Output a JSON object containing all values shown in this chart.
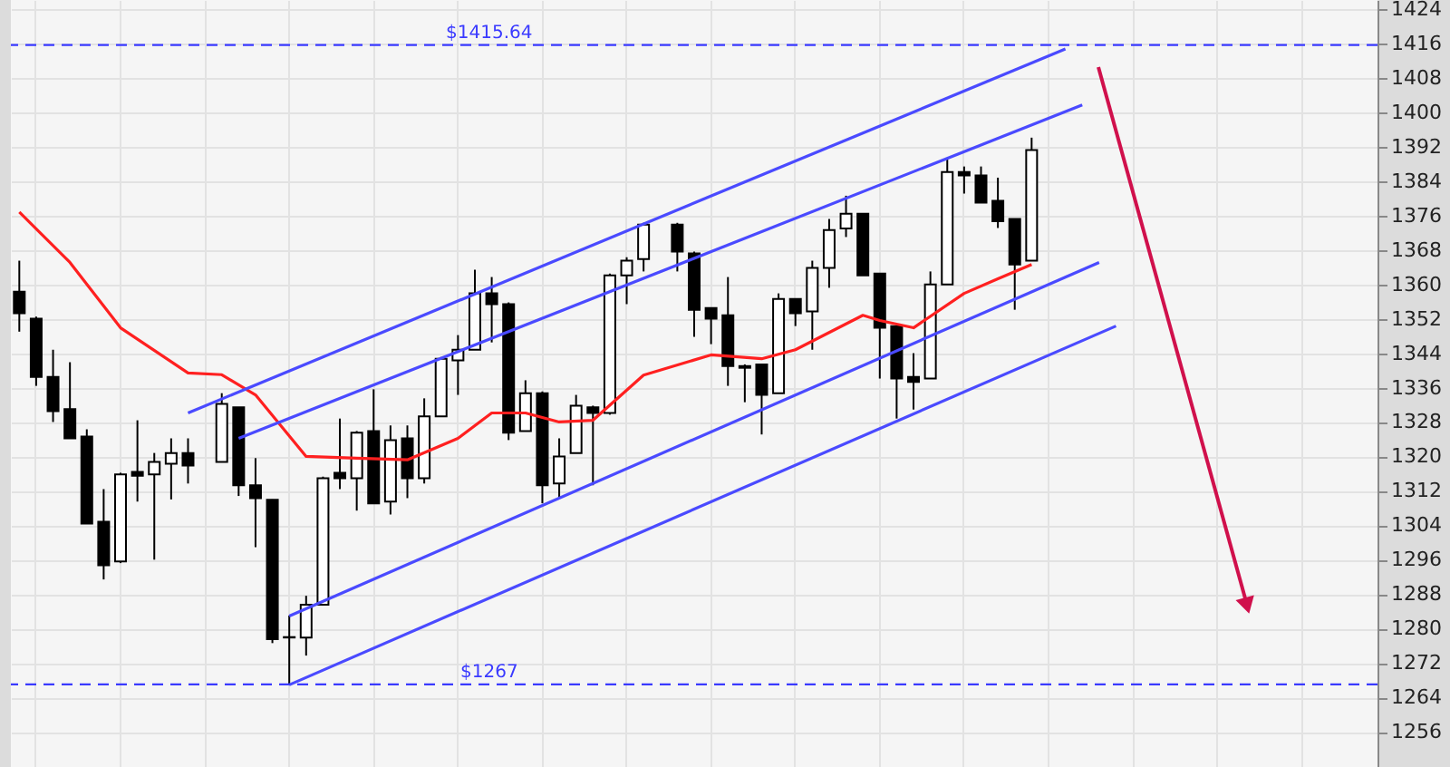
{
  "chart_data": {
    "type": "candlestick",
    "categories": [
      null,
      null,
      null,
      null,
      null,
      null,
      null,
      null,
      null,
      null,
      null,
      null,
      null,
      null,
      null,
      null,
      null,
      null,
      null,
      null,
      null,
      null,
      null,
      null,
      null,
      null,
      null,
      null,
      null,
      null,
      null,
      null,
      null,
      null,
      null,
      null,
      null,
      null,
      null,
      null,
      null,
      null,
      null,
      null,
      null,
      null,
      null,
      null,
      null,
      null,
      null,
      null,
      null,
      null,
      null,
      null,
      null,
      null,
      null,
      null,
      null,
      null,
      null,
      null,
      null,
      null,
      null,
      null,
      null,
      null,
      null,
      null,
      null,
      null,
      null,
      null,
      null,
      null,
      null,
      null,
      null
    ],
    "ohlc": [
      [
        1358.3,
        1365.5,
        1349,
        1353.3
      ],
      [
        1352,
        1352.5,
        1336.4,
        1338.5
      ],
      [
        1338.5,
        1344.8,
        1328,
        1330.5
      ],
      [
        1331,
        1341.9,
        1324.2,
        1324.2
      ],
      [
        1324.6,
        1326.3,
        1304.4,
        1304.4
      ],
      [
        1304.8,
        1312.4,
        1291.4,
        1294.7
      ],
      [
        1295.6,
        1316.2,
        1295.2,
        1315.8
      ],
      [
        1316.4,
        1328.4,
        1309.5,
        1315.5
      ],
      [
        1315.8,
        1320.8,
        1296,
        1318.7
      ],
      [
        1318.3,
        1324.2,
        1310,
        1320.8
      ],
      [
        1320.8,
        1324.2,
        1313.7,
        1317.9
      ],
      null,
      [
        1318.7,
        1334.7,
        1318.7,
        1332.2
      ],
      [
        1331.4,
        1331.4,
        1310.8,
        1313.3
      ],
      [
        1313.3,
        1319.6,
        1298.9,
        1310.3
      ],
      [
        1309.9,
        1310,
        1276.6,
        1277.5
      ],
      [
        1278,
        1283,
        1267,
        1277.9
      ],
      [
        1277.9,
        1287.6,
        1273.7,
        1285.5
      ],
      [
        1285.5,
        1315.3,
        1285.3,
        1314.9
      ],
      [
        1316.2,
        1328.8,
        1312.4,
        1314.9
      ],
      [
        1314.9,
        1325.9,
        1307.4,
        1325.5
      ],
      [
        1325.9,
        1335.6,
        1309.1,
        1309.1
      ],
      [
        1309.5,
        1327.2,
        1306.5,
        1323.8
      ],
      [
        1324.2,
        1327.2,
        1310.3,
        1314.9
      ],
      [
        1314.9,
        1333.5,
        1313.7,
        1329.3
      ],
      [
        1329.3,
        1343.1,
        1329.3,
        1342.7
      ],
      [
        1342.3,
        1348.2,
        1334.3,
        1344.8
      ],
      [
        1344.8,
        1363.4,
        1344.8,
        1357.9
      ],
      [
        1357.9,
        1361.7,
        1346.5,
        1355.4
      ],
      [
        1355.4,
        1355.8,
        1323.8,
        1325.5
      ],
      [
        1325.9,
        1337.7,
        1325.9,
        1334.7
      ],
      [
        1334.7,
        1335.1,
        1309.1,
        1313.3
      ],
      [
        1313.7,
        1324.2,
        1310.3,
        1320
      ],
      [
        1320.8,
        1334.3,
        1320.8,
        1331.8
      ],
      [
        1331.4,
        1331.8,
        1313.3,
        1330.1
      ],
      [
        1330.1,
        1362.5,
        1329.7,
        1362.1
      ],
      [
        1362.1,
        1366.3,
        1355.4,
        1365.5
      ],
      [
        1365.9,
        1374.3,
        1363,
        1373.9
      ],
      null,
      [
        1373.9,
        1374.3,
        1363,
        1367.6
      ],
      [
        1367.2,
        1367.6,
        1347.8,
        1354.1
      ],
      [
        1354.5,
        1354.5,
        1346.1,
        1352
      ],
      [
        1352.8,
        1361.7,
        1336.4,
        1341
      ],
      [
        1341,
        1341.4,
        1332.6,
        1340.6
      ],
      [
        1341.4,
        1341.4,
        1325.1,
        1334.3
      ],
      [
        1334.7,
        1357.9,
        1334.7,
        1356.6
      ],
      [
        1356.6,
        1356.6,
        1350.3,
        1353.3
      ],
      [
        1353.7,
        1365.5,
        1344.8,
        1363.8
      ],
      [
        1363.8,
        1375.2,
        1359.2,
        1372.6
      ],
      [
        1373,
        1380.6,
        1371,
        1376.4
      ],
      [
        1376.4,
        1376.4,
        1362.1,
        1362.1
      ],
      [
        1362.5,
        1362.5,
        1338.1,
        1349.9
      ],
      [
        1350.3,
        1350.3,
        1328.8,
        1338.1
      ],
      [
        1338.5,
        1344,
        1330.9,
        1337.3
      ],
      [
        1338.1,
        1363,
        1338.1,
        1360
      ],
      [
        1360,
        1389,
        1360,
        1386.1
      ],
      [
        1386.1,
        1387.4,
        1381.1,
        1385.3
      ],
      [
        1385.3,
        1387.4,
        1379,
        1379
      ],
      [
        1379.4,
        1384.8,
        1373.1,
        1374.7
      ],
      [
        1375.2,
        1375.2,
        1354.1,
        1364.6
      ],
      [
        1365.5,
        1394.1,
        1365.5,
        1391.2
      ],
      null,
      null,
      null,
      null,
      null,
      null,
      null,
      null,
      null,
      null,
      null,
      null,
      null,
      null,
      null,
      null,
      null,
      null,
      null,
      null
    ],
    "series": [
      {
        "type": "line",
        "color": "#ff2020",
        "values": [
          1376.8,
          null,
          null,
          1365.1,
          null,
          null,
          1349.9,
          null,
          null,
          null,
          1339.4,
          null,
          1339,
          null,
          1334.3,
          null,
          null,
          1320,
          null,
          null,
          1319.6,
          null,
          null,
          1319.2,
          null,
          null,
          1324.2,
          null,
          1330.1,
          null,
          1330.1,
          null,
          1328,
          null,
          1328.4,
          null,
          null,
          1338.9,
          null,
          null,
          null,
          1343.6,
          null,
          null,
          1342.7,
          null,
          1344.8,
          null,
          null,
          null,
          1352.8,
          1351.6,
          null,
          1349.9,
          null,
          null,
          1357.9,
          null,
          1361.3,
          null,
          1364.6,
          null,
          null,
          null,
          null,
          null,
          null,
          null,
          null,
          null,
          null,
          null,
          null,
          null,
          null,
          null,
          null,
          null,
          null,
          null,
          null
        ]
      },
      {
        "type": "line",
        "color": "#4a4aff",
        "values": [
          null,
          null,
          null,
          null,
          null,
          null,
          null,
          null,
          null,
          null,
          1330.1,
          null,
          null,
          null,
          null,
          null,
          null,
          null,
          null,
          null,
          null,
          null,
          null,
          null,
          null,
          null,
          null,
          null,
          null,
          null,
          null,
          null,
          null,
          null,
          null,
          null,
          null,
          null,
          null,
          null,
          null,
          null,
          null,
          null,
          null,
          null,
          null,
          null,
          null,
          null,
          null,
          null,
          null,
          null,
          null,
          null,
          null,
          null,
          null,
          null,
          null,
          null,
          1414.7,
          null,
          null,
          null,
          null,
          null,
          null,
          null,
          null,
          null,
          null,
          null,
          null,
          null,
          null,
          null,
          null,
          null,
          null
        ]
      },
      {
        "type": "line",
        "color": "#4a4aff",
        "values": [
          null,
          null,
          null,
          null,
          null,
          null,
          null,
          null,
          null,
          null,
          null,
          null,
          null,
          1324.2,
          null,
          null,
          null,
          null,
          null,
          null,
          null,
          null,
          null,
          null,
          null,
          null,
          null,
          null,
          null,
          null,
          null,
          null,
          null,
          null,
          null,
          null,
          null,
          null,
          null,
          null,
          null,
          null,
          null,
          null,
          null,
          null,
          null,
          null,
          null,
          null,
          null,
          null,
          null,
          null,
          null,
          null,
          null,
          null,
          null,
          null,
          null,
          null,
          null,
          1401.7,
          null,
          null,
          null,
          null,
          null,
          null,
          null,
          null,
          null,
          null,
          null,
          null,
          null,
          null,
          null,
          null,
          null
        ]
      },
      {
        "type": "line",
        "color": "#4a4aff",
        "values": [
          null,
          null,
          null,
          null,
          null,
          null,
          null,
          null,
          null,
          null,
          null,
          null,
          null,
          null,
          null,
          null,
          1282.9,
          null,
          null,
          null,
          null,
          null,
          null,
          null,
          null,
          null,
          null,
          null,
          null,
          null,
          null,
          null,
          null,
          null,
          null,
          null,
          null,
          null,
          null,
          null,
          null,
          null,
          null,
          null,
          null,
          null,
          null,
          null,
          null,
          null,
          null,
          null,
          null,
          null,
          null,
          null,
          null,
          null,
          null,
          null,
          null,
          null,
          null,
          null,
          1365.1,
          null,
          null,
          null,
          null,
          null,
          null,
          null,
          null,
          null,
          null,
          null,
          null,
          null,
          null,
          null,
          null
        ]
      },
      {
        "type": "line",
        "color": "#4a4aff",
        "values": [
          null,
          null,
          null,
          null,
          null,
          null,
          null,
          null,
          null,
          null,
          null,
          null,
          null,
          null,
          null,
          null,
          1266.9,
          null,
          null,
          null,
          null,
          null,
          null,
          null,
          null,
          null,
          null,
          null,
          null,
          null,
          null,
          null,
          null,
          null,
          null,
          null,
          null,
          null,
          null,
          null,
          null,
          null,
          null,
          null,
          null,
          null,
          null,
          null,
          null,
          null,
          null,
          null,
          null,
          null,
          null,
          null,
          null,
          null,
          null,
          null,
          null,
          null,
          null,
          null,
          null,
          1350.3,
          null,
          null,
          null,
          null,
          null,
          null,
          null,
          null,
          null,
          null,
          null,
          null,
          null,
          null,
          null
        ]
      }
    ],
    "ref_lines": [
      {
        "axis": "y",
        "value": 1415.64,
        "label": "$1415.64",
        "color": "#3a3aff",
        "line_style": "dashed"
      },
      {
        "axis": "y",
        "value": 1267,
        "label": "$1267",
        "color": "#3a3aff",
        "line_style": "dashed"
      }
    ],
    "ylim": [
      1247.8,
      1426.1
    ],
    "yticks": [
      1256,
      1264,
      1272,
      1280,
      1288,
      1296,
      1304,
      1312,
      1320,
      1328,
      1336,
      1344,
      1352,
      1360,
      1368,
      1376,
      1384,
      1392,
      1400,
      1408,
      1416,
      1424
    ],
    "grid": true,
    "tick_labels": "y",
    "line_style": "solid",
    "marker": "none"
  }
}
